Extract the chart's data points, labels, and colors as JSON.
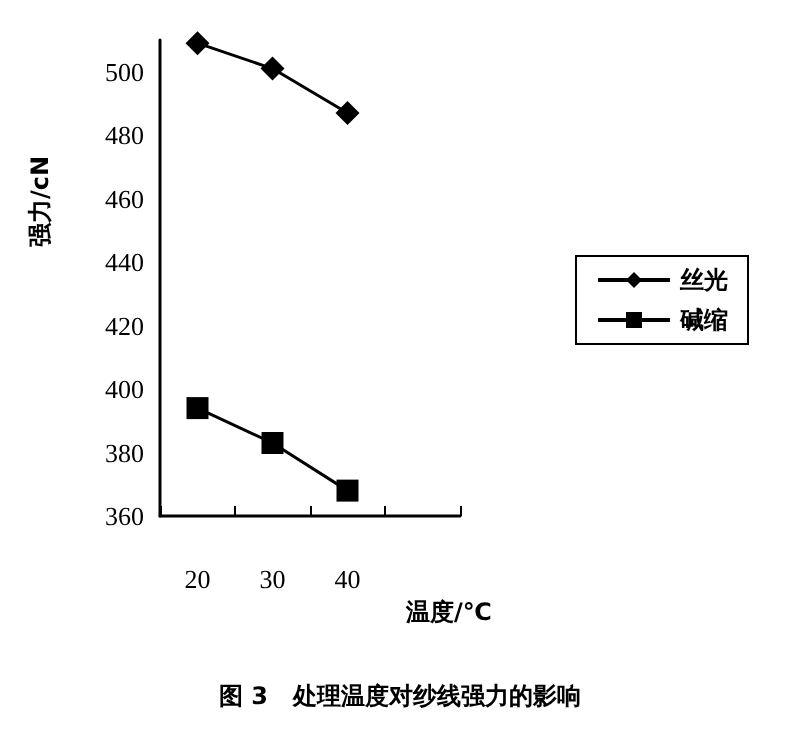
{
  "chart_data": {
    "type": "line",
    "title": "图 3   处理温度对纱线强力的影响",
    "xlabel": "温度/℃",
    "ylabel": "强力/cN",
    "categories": [
      "20",
      "30",
      "40",
      null
    ],
    "series": [
      {
        "name": "丝光",
        "color": "#000000",
        "marker": "diamond",
        "values": [
          509,
          501,
          487,
          null
        ]
      },
      {
        "name": "碱缩",
        "color": "#000000",
        "marker": "square",
        "values": [
          394,
          383,
          368,
          null
        ]
      }
    ],
    "ylim": [
      360,
      510
    ],
    "yticks": [
      360,
      380,
      400,
      420,
      440,
      460,
      480,
      500
    ],
    "grid": false,
    "legend": "right"
  }
}
